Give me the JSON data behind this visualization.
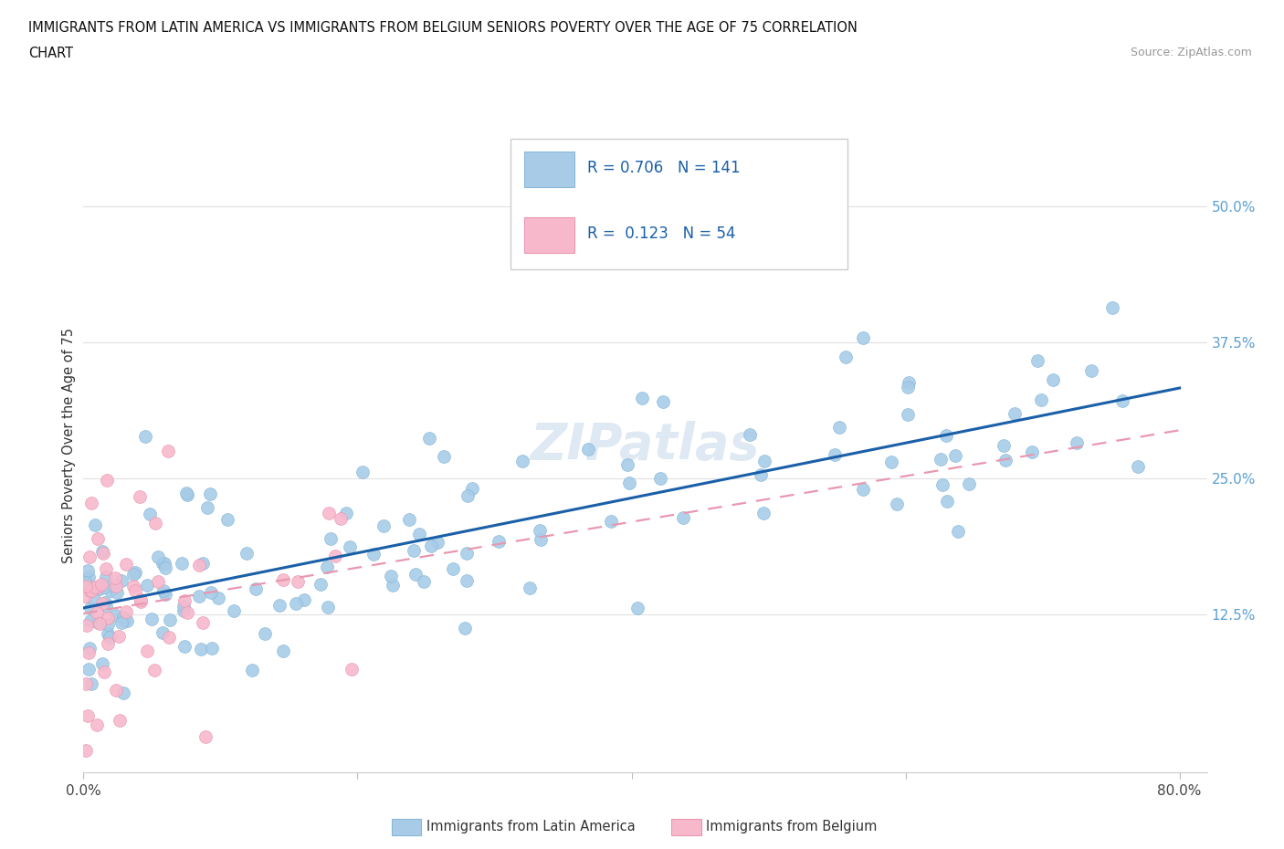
{
  "title_line1": "IMMIGRANTS FROM LATIN AMERICA VS IMMIGRANTS FROM BELGIUM SENIORS POVERTY OVER THE AGE OF 75 CORRELATION",
  "title_line2": "CHART",
  "source": "Source: ZipAtlas.com",
  "watermark": "ZIPatlas",
  "ylabel": "Seniors Poverty Over the Age of 75",
  "xlim": [
    0.0,
    0.82
  ],
  "ylim": [
    -0.02,
    0.58
  ],
  "yticks_right": [
    0.125,
    0.25,
    0.375,
    0.5
  ],
  "ytick_right_labels": [
    "12.5%",
    "25.0%",
    "37.5%",
    "50.0%"
  ],
  "grid_color": "#e0e0e0",
  "background_color": "#ffffff",
  "series1_color": "#a8cce8",
  "series1_edge": "#88b8d8",
  "series2_color": "#f8b8cc",
  "series2_edge": "#e898b0",
  "line1_color": "#1a5fa8",
  "line2_color": "#e898b0",
  "R1": 0.706,
  "N1": 141,
  "R2": 0.123,
  "N2": 54,
  "legend1_label": "Immigrants from Latin America",
  "legend2_label": "Immigrants from Belgium",
  "seed1": 42,
  "seed2": 77
}
